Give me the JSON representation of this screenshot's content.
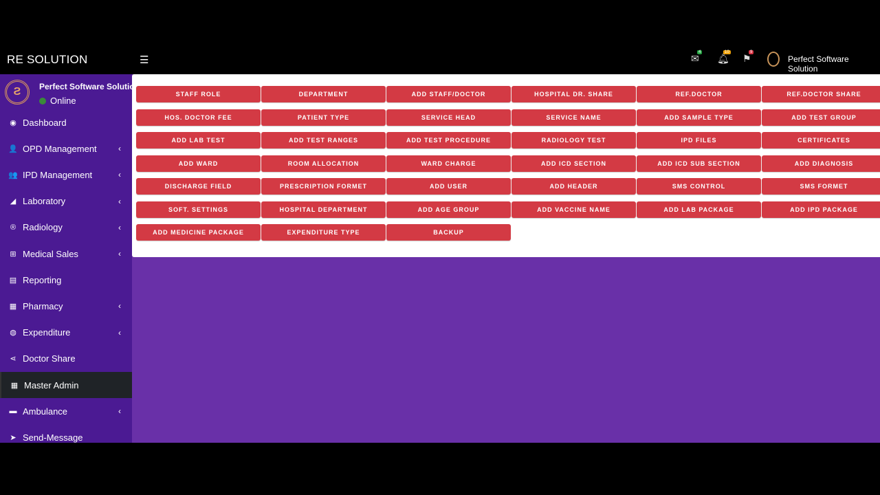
{
  "header": {
    "brand": "RE SOLUTION",
    "user_name": "Perfect Software Solution",
    "notifications": [
      {
        "icon": "envelope-icon",
        "count": "4",
        "color": "#28a745"
      },
      {
        "icon": "bell-icon",
        "count": "10",
        "color": "#f0a30a"
      },
      {
        "icon": "flag-icon",
        "count": "9",
        "color": "#dc3545"
      }
    ]
  },
  "sidebar": {
    "user_name": "Perfect Software Solution",
    "status": "Online",
    "items": [
      {
        "label": "Dashboard",
        "icon": "dashboard-icon",
        "glyph": "◉",
        "chev": false
      },
      {
        "label": "OPD Management",
        "icon": "user-icon",
        "glyph": "👤",
        "chev": true
      },
      {
        "label": "IPD Management",
        "icon": "users-icon",
        "glyph": "👥",
        "chev": true
      },
      {
        "label": "Laboratory",
        "icon": "eraser-icon",
        "glyph": "◢",
        "chev": true
      },
      {
        "label": "Radiology",
        "icon": "registered-icon",
        "glyph": "®",
        "chev": true
      },
      {
        "label": "Medical Sales",
        "icon": "plus-square-icon",
        "glyph": "⊞",
        "chev": true
      },
      {
        "label": "Reporting",
        "icon": "file-icon",
        "glyph": "▤",
        "chev": false
      },
      {
        "label": "Pharmacy",
        "icon": "hospital-icon",
        "glyph": "▦",
        "chev": true
      },
      {
        "label": "Expenditure",
        "icon": "lock-icon",
        "glyph": "◍",
        "chev": true
      },
      {
        "label": "Doctor Share",
        "icon": "share-icon",
        "glyph": "⋖",
        "chev": false
      },
      {
        "label": "Master Admin",
        "icon": "grid-icon",
        "glyph": "▦",
        "chev": false,
        "active": true
      },
      {
        "label": "Ambulance",
        "icon": "ambulance-icon",
        "glyph": "▬",
        "chev": true
      },
      {
        "label": "Send-Message",
        "icon": "paper-plane-icon",
        "glyph": "➤",
        "chev": false
      }
    ]
  },
  "buttons": [
    "STAFF ROLE",
    "DEPARTMENT",
    "ADD STAFF/DOCTOR",
    "HOSPITAL DR. SHARE",
    "REF.DOCTOR",
    "REF.DOCTOR SHARE",
    "HOS. DOCTOR FEE",
    "PATIENT TYPE",
    "SERVICE HEAD",
    "SERVICE NAME",
    "ADD SAMPLE TYPE",
    "ADD TEST GROUP",
    "ADD LAB TEST",
    "ADD TEST RANGES",
    "ADD TEST PROCEDURE",
    "RADIOLOGY TEST",
    "IPD FILES",
    "CERTIFICATES",
    "ADD WARD",
    "ROOM ALLOCATION",
    "WARD CHARGE",
    "ADD ICD SECTION",
    "ADD ICD SUB SECTION",
    "ADD DIAGNOSIS",
    "DISCHARGE FIELD",
    "PRESCRIPTION FORMET",
    "ADD USER",
    "ADD HEADER",
    "SMS CONTROL",
    "SMS FORMET",
    "SOFT. SETTINGS",
    "HOSPITAL DEPARTMENT",
    "ADD AGE GROUP",
    "ADD VACCINE NAME",
    "ADD LAB PACKAGE",
    "ADD IPD PACKAGE",
    "ADD MEDICINE PACKAGE",
    "EXPENDITURE TYPE",
    "BACKUP"
  ]
}
